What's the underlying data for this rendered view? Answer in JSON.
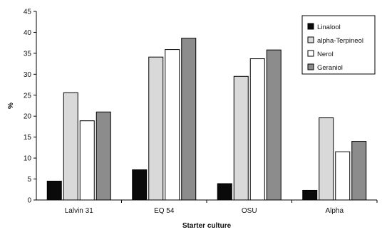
{
  "chart_data": {
    "type": "bar",
    "title": "",
    "xlabel": "Starter culture",
    "ylabel": "%",
    "ylim": [
      0,
      45
    ],
    "yticks": [
      0,
      5,
      10,
      15,
      20,
      25,
      30,
      35,
      40,
      45
    ],
    "grid": false,
    "legend_position": "top-right",
    "categories": [
      "Lalvin 31",
      "EQ 54",
      "OSU",
      "Alpha"
    ],
    "series": [
      {
        "name": "Linalool",
        "color": "#0a0a0a",
        "values": [
          4.5,
          7.2,
          3.9,
          2.3
        ]
      },
      {
        "name": "alpha-Terpineol",
        "color": "#d9d9d9",
        "values": [
          25.6,
          34.1,
          29.5,
          19.6
        ]
      },
      {
        "name": "Nerol",
        "color": "#ffffff",
        "values": [
          18.9,
          35.9,
          33.7,
          11.5
        ]
      },
      {
        "name": "Geraniol",
        "color": "#8c8c8c",
        "values": [
          21.0,
          38.6,
          35.8,
          14.0
        ]
      }
    ]
  }
}
